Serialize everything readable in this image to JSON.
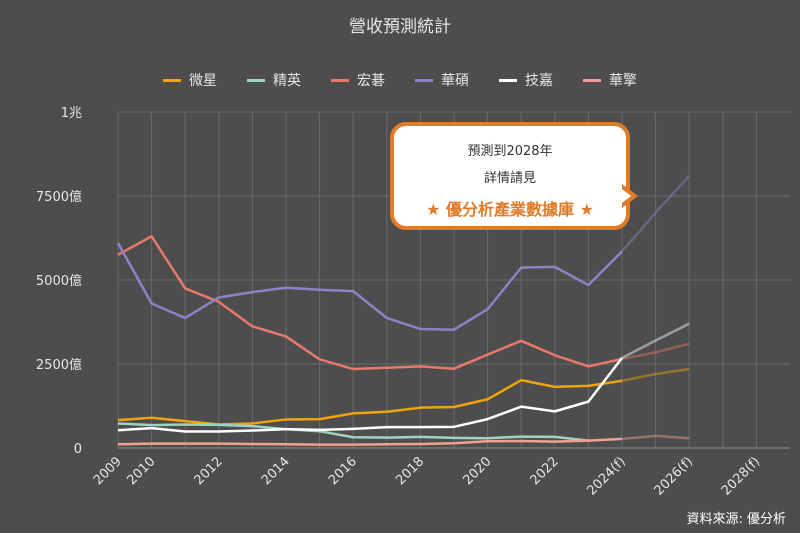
{
  "chart_data": {
    "type": "line",
    "title": "營收預測統計",
    "categories": [
      "2009",
      "2010",
      "2011",
      "2012",
      "2013",
      "2014",
      "2015",
      "2016",
      "2017",
      "2018",
      "2019",
      "2020",
      "2021",
      "2022",
      "2023",
      "2024(f)",
      "2025(f)",
      "2026(f)",
      "2027(f)",
      "2028(f)"
    ],
    "x_tick_labels": [
      "2009",
      "2010",
      "2012",
      "2014",
      "2016",
      "2018",
      "2020",
      "2022",
      "2024(f)",
      "2026(f)",
      "2028(f)"
    ],
    "y_ticks": [
      {
        "value": 0,
        "label": "0"
      },
      {
        "value": 2500,
        "label": "2500億"
      },
      {
        "value": 5000,
        "label": "5000億"
      },
      {
        "value": 7500,
        "label": "7500億"
      },
      {
        "value": 10000,
        "label": "1兆"
      }
    ],
    "ylim": [
      0,
      10000
    ],
    "grid": true,
    "legend_position": "top",
    "series": [
      {
        "name": "微星",
        "color": "#f0a30a",
        "values": [
          830,
          900,
          800,
          700,
          730,
          850,
          860,
          1030,
          1080,
          1200,
          1220,
          1450,
          2020,
          1820,
          1850,
          2000,
          2200,
          2350,
          null,
          null
        ]
      },
      {
        "name": "精英",
        "color": "#9dd3c7",
        "values": [
          730,
          680,
          700,
          690,
          650,
          560,
          500,
          320,
          310,
          330,
          300,
          290,
          340,
          330,
          220,
          null,
          null,
          null,
          null,
          null
        ]
      },
      {
        "name": "宏碁",
        "color": "#e8796b",
        "values": [
          5750,
          6300,
          4750,
          4350,
          3620,
          3320,
          2640,
          2350,
          2390,
          2430,
          2360,
          2780,
          3190,
          2760,
          2430,
          2650,
          2850,
          3100,
          null,
          null
        ]
      },
      {
        "name": "華碩",
        "color": "#8a84c6",
        "values": [
          6100,
          4300,
          3870,
          4480,
          4640,
          4770,
          4710,
          4670,
          3870,
          3540,
          3520,
          4130,
          5370,
          5390,
          4850,
          5850,
          7000,
          8100,
          null,
          null
        ]
      },
      {
        "name": "技嘉",
        "color": "#ffffff",
        "values": [
          530,
          590,
          490,
          490,
          520,
          560,
          540,
          570,
          620,
          620,
          630,
          860,
          1230,
          1090,
          1380,
          2680,
          3200,
          3700,
          null,
          null
        ]
      },
      {
        "name": "華擎",
        "color": "#f0a090",
        "values": [
          110,
          130,
          130,
          130,
          120,
          110,
          100,
          100,
          110,
          120,
          140,
          200,
          210,
          190,
          220,
          270,
          360,
          290,
          null,
          null
        ]
      }
    ],
    "forecast_from_index": 15
  },
  "callout": {
    "line1": "預測到2028年",
    "line2": "詳情請見",
    "line3": "★ 優分析產業數據庫 ★"
  },
  "source": "資料來源: 優分析"
}
